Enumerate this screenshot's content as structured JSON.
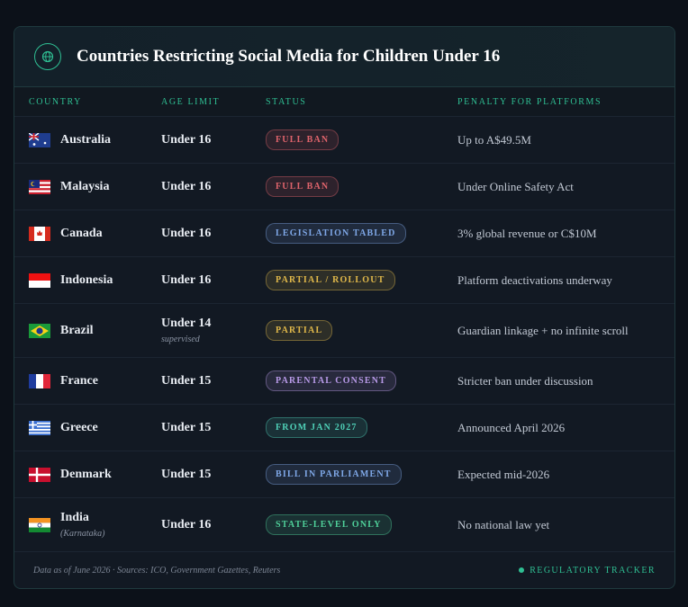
{
  "header": {
    "title": "Countries Restricting Social Media for Children Under 16"
  },
  "table": {
    "columns": [
      "COUNTRY",
      "AGE LIMIT",
      "STATUS",
      "PENALTY FOR PLATFORMS"
    ],
    "rows": [
      {
        "country": "Australia",
        "age": "Under 16",
        "status": "FULL BAN",
        "status_color": "#e0646c",
        "penalty": "Up to A$49.5M"
      },
      {
        "country": "Malaysia",
        "age": "Under 16",
        "status": "FULL BAN",
        "status_color": "#e0646c",
        "penalty": "Under Online Safety Act"
      },
      {
        "country": "Canada",
        "age": "Under 16",
        "status": "LEGISLATION TABLED",
        "status_color": "#7fa8e8",
        "penalty": "3% global revenue or C$10M"
      },
      {
        "country": "Indonesia",
        "age": "Under 16",
        "status": "PARTIAL / ROLLOUT",
        "status_color": "#e0b84a",
        "penalty": "Platform deactivations underway"
      },
      {
        "country": "Brazil",
        "age": "Under 14",
        "age_note": "supervised",
        "status": "PARTIAL",
        "status_color": "#e0b84a",
        "penalty": "Guardian linkage + no infinite scroll"
      },
      {
        "country": "France",
        "age": "Under 15",
        "status": "PARENTAL CONSENT",
        "status_color": "#b89ae8",
        "penalty": "Stricter ban under discussion"
      },
      {
        "country": "Greece",
        "age": "Under 15",
        "status": "FROM JAN 2027",
        "status_color": "#4fd1b8",
        "penalty": "Announced April 2026"
      },
      {
        "country": "Denmark",
        "age": "Under 15",
        "status": "BILL IN PARLIAMENT",
        "status_color": "#7fa8e8",
        "penalty": "Expected mid-2026"
      },
      {
        "country": "India",
        "country_note": "(Karnataka)",
        "age": "Under 16",
        "status": "STATE-LEVEL ONLY",
        "status_color": "#4fd19a",
        "penalty": "No national law yet"
      }
    ]
  },
  "footer": {
    "note": "Data as of June 2026 · Sources: ICO, Government Gazettes, Reuters",
    "tag": "REGULATORY TRACKER"
  }
}
